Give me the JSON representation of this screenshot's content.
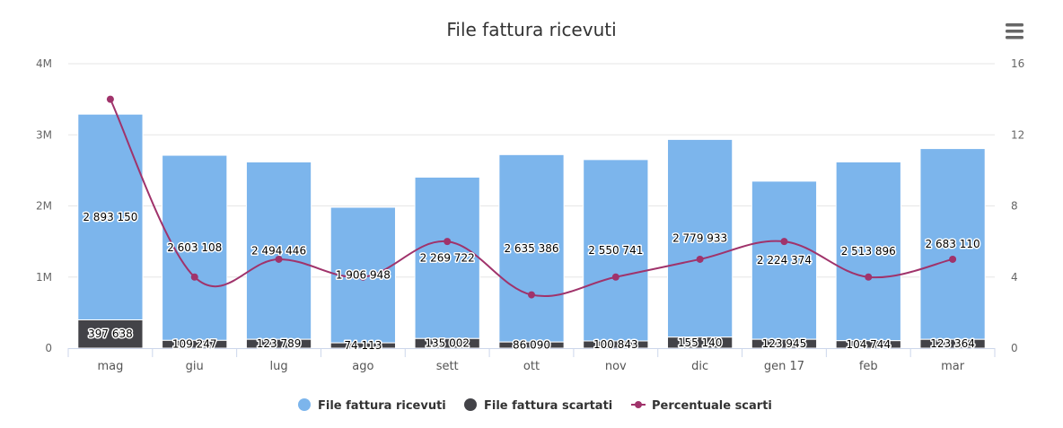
{
  "chart_data": {
    "type": "bar",
    "title": "File fattura ricevuti",
    "categories": [
      "mag",
      "giu",
      "lug",
      "ago",
      "sett",
      "ott",
      "nov",
      "dic",
      "gen 17",
      "feb",
      "mar"
    ],
    "stacked": true,
    "series": [
      {
        "name": "File fattura ricevuti",
        "type": "bar",
        "axis": "left",
        "color": "#7cb5ec",
        "values": [
          2893150,
          2603108,
          2494446,
          1906948,
          2269722,
          2635386,
          2550741,
          2779933,
          2224374,
          2513896,
          2683110
        ],
        "labels": [
          "2 893 150",
          "2 603 108",
          "2 494 446",
          "1 906 948",
          "2 269 722",
          "2 635 386",
          "2 550 741",
          "2 779 933",
          "2 224 374",
          "2 513 896",
          "2 683 110"
        ]
      },
      {
        "name": "File fattura scartati",
        "type": "bar",
        "axis": "left",
        "color": "#434348",
        "values": [
          397638,
          109247,
          123789,
          74113,
          135002,
          86090,
          100843,
          155140,
          123945,
          104744,
          123364
        ],
        "labels": [
          "397 638",
          "109 247",
          "123 789",
          "74 113",
          "135 002",
          "86 090",
          "100 843",
          "155 140",
          "123 945",
          "104 744",
          "123 364"
        ]
      },
      {
        "name": "Percentuale scarti",
        "type": "line",
        "axis": "right",
        "color": "#a0336b",
        "values": [
          14,
          4,
          5,
          4,
          6,
          3,
          4,
          5,
          6,
          4,
          5
        ]
      }
    ],
    "y_left": {
      "min": 0,
      "max": 4000000,
      "ticks": [
        0,
        1000000,
        2000000,
        3000000,
        4000000
      ],
      "tick_labels": [
        "0",
        "1M",
        "2M",
        "3M",
        "4M"
      ]
    },
    "y_right": {
      "min": 0,
      "max": 16,
      "ticks": [
        0,
        4,
        8,
        12,
        16
      ],
      "tick_labels": [
        "0",
        "4",
        "8",
        "12",
        "16"
      ]
    },
    "grid": true,
    "legend": "bottom-center"
  },
  "toolbar": {
    "menu_icon": "hamburger-menu-icon"
  }
}
